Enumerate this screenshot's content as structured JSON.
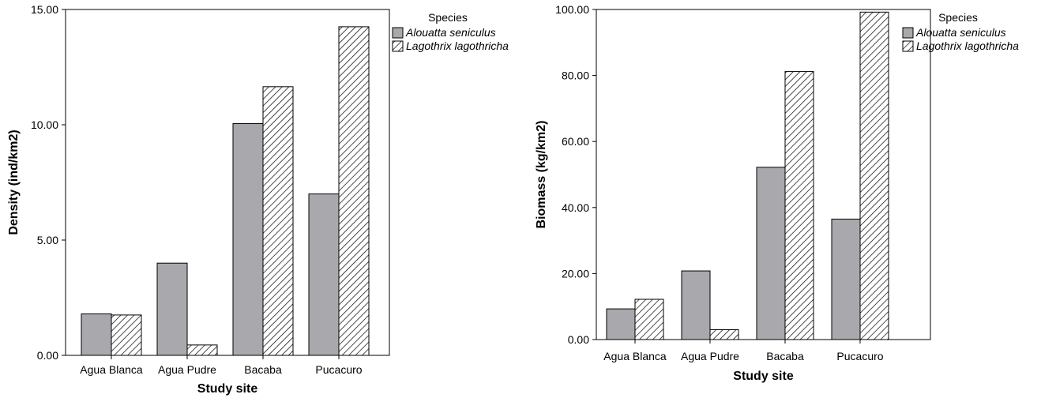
{
  "chart_data": [
    {
      "type": "bar",
      "categories": [
        "Agua Blanca",
        "Agua Pudre",
        "Bacaba",
        "Pucacuro"
      ],
      "series": [
        {
          "name": "Alouatta seniculus",
          "values": [
            1.8,
            4.0,
            10.05,
            7.0
          ]
        },
        {
          "name": "Lagothrix lagothricha",
          "values": [
            1.75,
            0.45,
            11.65,
            14.25
          ]
        }
      ],
      "xlabel": "Study site",
      "ylabel": "Density (ind/km2)",
      "ylim": [
        0,
        15
      ],
      "yticks": [
        "0.00",
        "5.00",
        "10.00",
        "15.00"
      ],
      "legend_title": "Species",
      "legend_position": "right",
      "grid": false
    },
    {
      "type": "bar",
      "categories": [
        "Agua Blanca",
        "Agua Pudre",
        "Bacaba",
        "Pucacuro"
      ],
      "series": [
        {
          "name": "Alouatta seniculus",
          "values": [
            9.3,
            20.8,
            52.2,
            36.5
          ]
        },
        {
          "name": "Lagothrix lagothricha",
          "values": [
            12.2,
            3.0,
            81.2,
            99.2
          ]
        }
      ],
      "xlabel": "Study site",
      "ylabel": "Biomass (kg/km2)",
      "ylim": [
        0,
        100
      ],
      "yticks": [
        "0.00",
        "20.00",
        "40.00",
        "60.00",
        "80.00",
        "100.00"
      ],
      "legend_title": "Species",
      "legend_position": "right",
      "grid": false
    }
  ],
  "colors": {
    "series_fill": "#a9a9ad",
    "hatch_fill": "#ffffff",
    "stroke": "#000000"
  }
}
